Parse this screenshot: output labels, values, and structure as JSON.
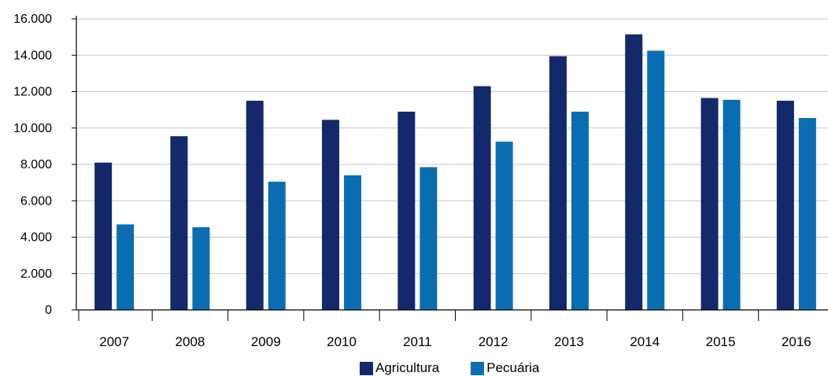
{
  "chart_data": {
    "type": "bar",
    "categories": [
      "2007",
      "2008",
      "2009",
      "2010",
      "2011",
      "2012",
      "2013",
      "2014",
      "2015",
      "2016"
    ],
    "series": [
      {
        "name": "Agricultura",
        "color": "#13296b",
        "values": [
          8100,
          9550,
          11500,
          10450,
          10900,
          12300,
          13950,
          15150,
          11650,
          11500
        ]
      },
      {
        "name": "Pecuária",
        "color": "#0a6db2",
        "values": [
          4700,
          4550,
          7050,
          7400,
          7850,
          9250,
          10900,
          14250,
          11550,
          10550
        ]
      }
    ],
    "ylim": [
      0,
      16000
    ],
    "yticks": [
      0,
      2000,
      4000,
      6000,
      8000,
      10000,
      12000,
      14000,
      16000
    ],
    "ytick_labels": [
      "0",
      "2.000",
      "4.000",
      "6.000",
      "8.000",
      "10.000",
      "12.000",
      "14.000",
      "16.000"
    ],
    "grid": true,
    "legend_position": "bottom-center"
  }
}
